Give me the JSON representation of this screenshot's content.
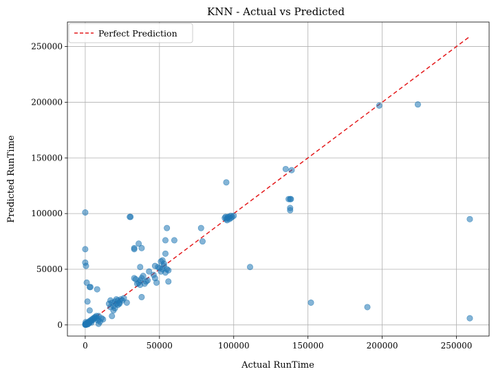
{
  "chart_data": {
    "type": "scatter",
    "title": "KNN - Actual vs Predicted",
    "xlabel": "Actual RunTime",
    "ylabel": "Predicted RunTime",
    "xlim": [
      -12000,
      272000
    ],
    "ylim": [
      -10000,
      272000
    ],
    "xticks": [
      0,
      50000,
      100000,
      150000,
      200000,
      250000
    ],
    "yticks": [
      0,
      50000,
      100000,
      150000,
      200000,
      250000
    ],
    "grid": true,
    "legend": {
      "position": "top-left",
      "entries": [
        "Perfect Prediction"
      ]
    },
    "colors": {
      "points": "#1f77b4",
      "perfect_line": "#e41a1c",
      "grid": "#b0b0b0"
    },
    "perfect_line": {
      "x": [
        0,
        259000
      ],
      "y": [
        0,
        259000
      ]
    },
    "points": [
      [
        0,
        500
      ],
      [
        200,
        800
      ],
      [
        500,
        1200
      ],
      [
        800,
        300
      ],
      [
        1000,
        1500
      ],
      [
        1500,
        2000
      ],
      [
        300,
        2500
      ],
      [
        2000,
        1000
      ],
      [
        2500,
        3000
      ],
      [
        3000,
        2500
      ],
      [
        3500,
        4000
      ],
      [
        4000,
        3500
      ],
      [
        4500,
        5000
      ],
      [
        5000,
        4500
      ],
      [
        5500,
        6000
      ],
      [
        6000,
        5500
      ],
      [
        6500,
        7000
      ],
      [
        7000,
        6500
      ],
      [
        7500,
        8000
      ],
      [
        8000,
        6000
      ],
      [
        9000,
        1000
      ],
      [
        10000,
        3000
      ],
      [
        11000,
        6000
      ],
      [
        12000,
        5000
      ],
      [
        8500,
        4000
      ],
      [
        600,
        200
      ],
      [
        100,
        100
      ],
      [
        1800,
        600
      ],
      [
        2800,
        1800
      ],
      [
        4200,
        2200
      ],
      [
        0,
        101000
      ],
      [
        0,
        68000
      ],
      [
        0,
        56000
      ],
      [
        500,
        53000
      ],
      [
        1000,
        38000
      ],
      [
        1500,
        21000
      ],
      [
        3000,
        34000
      ],
      [
        3500,
        34000
      ],
      [
        3000,
        13000
      ],
      [
        8000,
        32000
      ],
      [
        9000,
        8000
      ],
      [
        16000,
        19000
      ],
      [
        17000,
        22000
      ],
      [
        18000,
        20000
      ],
      [
        19000,
        17000
      ],
      [
        20000,
        21000
      ],
      [
        21000,
        19000
      ],
      [
        22000,
        22000
      ],
      [
        23000,
        20000
      ],
      [
        24000,
        23000
      ],
      [
        18000,
        8000
      ],
      [
        20000,
        15000
      ],
      [
        26000,
        24000
      ],
      [
        28000,
        20000
      ],
      [
        19000,
        13000
      ],
      [
        22000,
        18000
      ],
      [
        25000,
        22000
      ],
      [
        21000,
        23000
      ],
      [
        23000,
        19000
      ],
      [
        17000,
        16000
      ],
      [
        30000,
        97000
      ],
      [
        30500,
        97000
      ],
      [
        33000,
        68000
      ],
      [
        33000,
        69000
      ],
      [
        36000,
        73000
      ],
      [
        38000,
        69000
      ],
      [
        33000,
        42000
      ],
      [
        34000,
        41000
      ],
      [
        35000,
        37000
      ],
      [
        36000,
        38000
      ],
      [
        37000,
        40000
      ],
      [
        38000,
        42000
      ],
      [
        39000,
        44000
      ],
      [
        40000,
        37000
      ],
      [
        41000,
        39000
      ],
      [
        42000,
        40000
      ],
      [
        37000,
        36000
      ],
      [
        38000,
        25000
      ],
      [
        37000,
        52000
      ],
      [
        43000,
        48000
      ],
      [
        47000,
        42000
      ],
      [
        48000,
        38000
      ],
      [
        50000,
        51000
      ],
      [
        51000,
        57000
      ],
      [
        52000,
        50000
      ],
      [
        53000,
        55000
      ],
      [
        54000,
        47000
      ],
      [
        55000,
        50000
      ],
      [
        53000,
        53000
      ],
      [
        52000,
        58000
      ],
      [
        54000,
        64000
      ],
      [
        54000,
        76000
      ],
      [
        55000,
        87000
      ],
      [
        56000,
        39000
      ],
      [
        56000,
        49000
      ],
      [
        60000,
        76000
      ],
      [
        47000,
        53000
      ],
      [
        46000,
        45000
      ],
      [
        49000,
        52000
      ],
      [
        51000,
        48000
      ],
      [
        78000,
        87000
      ],
      [
        79000,
        75000
      ],
      [
        94000,
        96000
      ],
      [
        95000,
        95000
      ],
      [
        96000,
        96000
      ],
      [
        97000,
        97000
      ],
      [
        98000,
        98000
      ],
      [
        99000,
        97000
      ],
      [
        100000,
        98000
      ],
      [
        95000,
        128000
      ],
      [
        96000,
        97000
      ],
      [
        97000,
        95000
      ],
      [
        98000,
        96000
      ],
      [
        95500,
        94000
      ],
      [
        94500,
        97000
      ],
      [
        111000,
        52000
      ],
      [
        135000,
        140000
      ],
      [
        137000,
        113000
      ],
      [
        138000,
        113000
      ],
      [
        138000,
        105000
      ],
      [
        138000,
        103000
      ],
      [
        139000,
        139000
      ],
      [
        138500,
        113000
      ],
      [
        152000,
        20000
      ],
      [
        190000,
        16000
      ],
      [
        198000,
        197000
      ],
      [
        224000,
        198000
      ],
      [
        259000,
        95000
      ],
      [
        259000,
        6000
      ]
    ]
  }
}
